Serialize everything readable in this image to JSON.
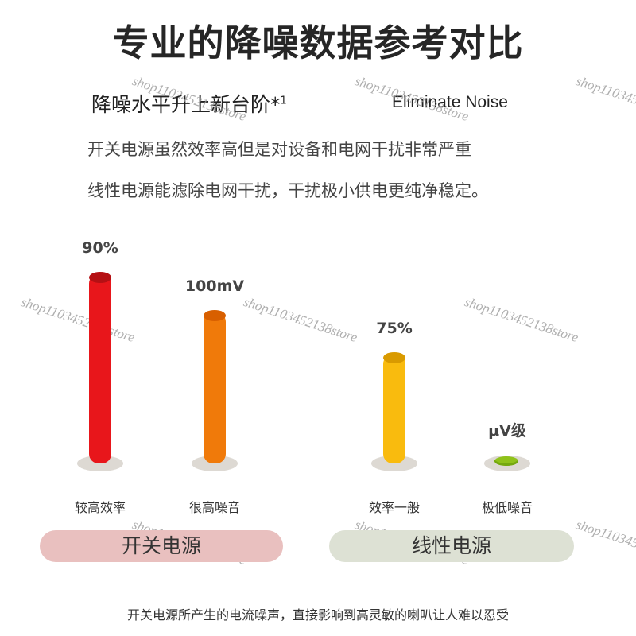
{
  "header": {
    "title": "专业的降噪数据参考对比",
    "subtitle": "降噪水平升上新台阶*",
    "subtitle_sup": "1",
    "subtitle_en": "Eliminate Noise",
    "desc_line1": "开关电源虽然效率高但是对设备和电网干扰非常严重",
    "desc_line2": "线性电源能滤除电网干扰，干扰极小供电更纯净稳定。"
  },
  "watermark": "shop1103452138store",
  "chart_data": {
    "type": "bar",
    "groups": [
      "开关电源",
      "线性电源"
    ],
    "bars": [
      {
        "group": "开关电源",
        "value_label": "90%",
        "label": "较高效率",
        "level": 0.9,
        "color": "#e8161b",
        "top_color": "#b51014"
      },
      {
        "group": "开关电源",
        "value_label": "100mV",
        "label": "很高噪音",
        "level": 0.72,
        "color": "#f07a0a",
        "top_color": "#d85f00"
      },
      {
        "group": "线性电源",
        "value_label": "75%",
        "label": "效率一般",
        "level": 0.52,
        "color": "#f9bb0e",
        "top_color": "#d99a00"
      },
      {
        "group": "线性电源",
        "value_label": "μV级",
        "label": "极低噪音",
        "level": 0.03,
        "color": "#8fc21a",
        "top_color": "#74a80f"
      }
    ]
  },
  "pills": {
    "left": "开关电源",
    "right": "线性电源"
  },
  "footer": "开关电源所产生的电流噪声，直接影响到高灵敏的喇叭让人难以忍受"
}
